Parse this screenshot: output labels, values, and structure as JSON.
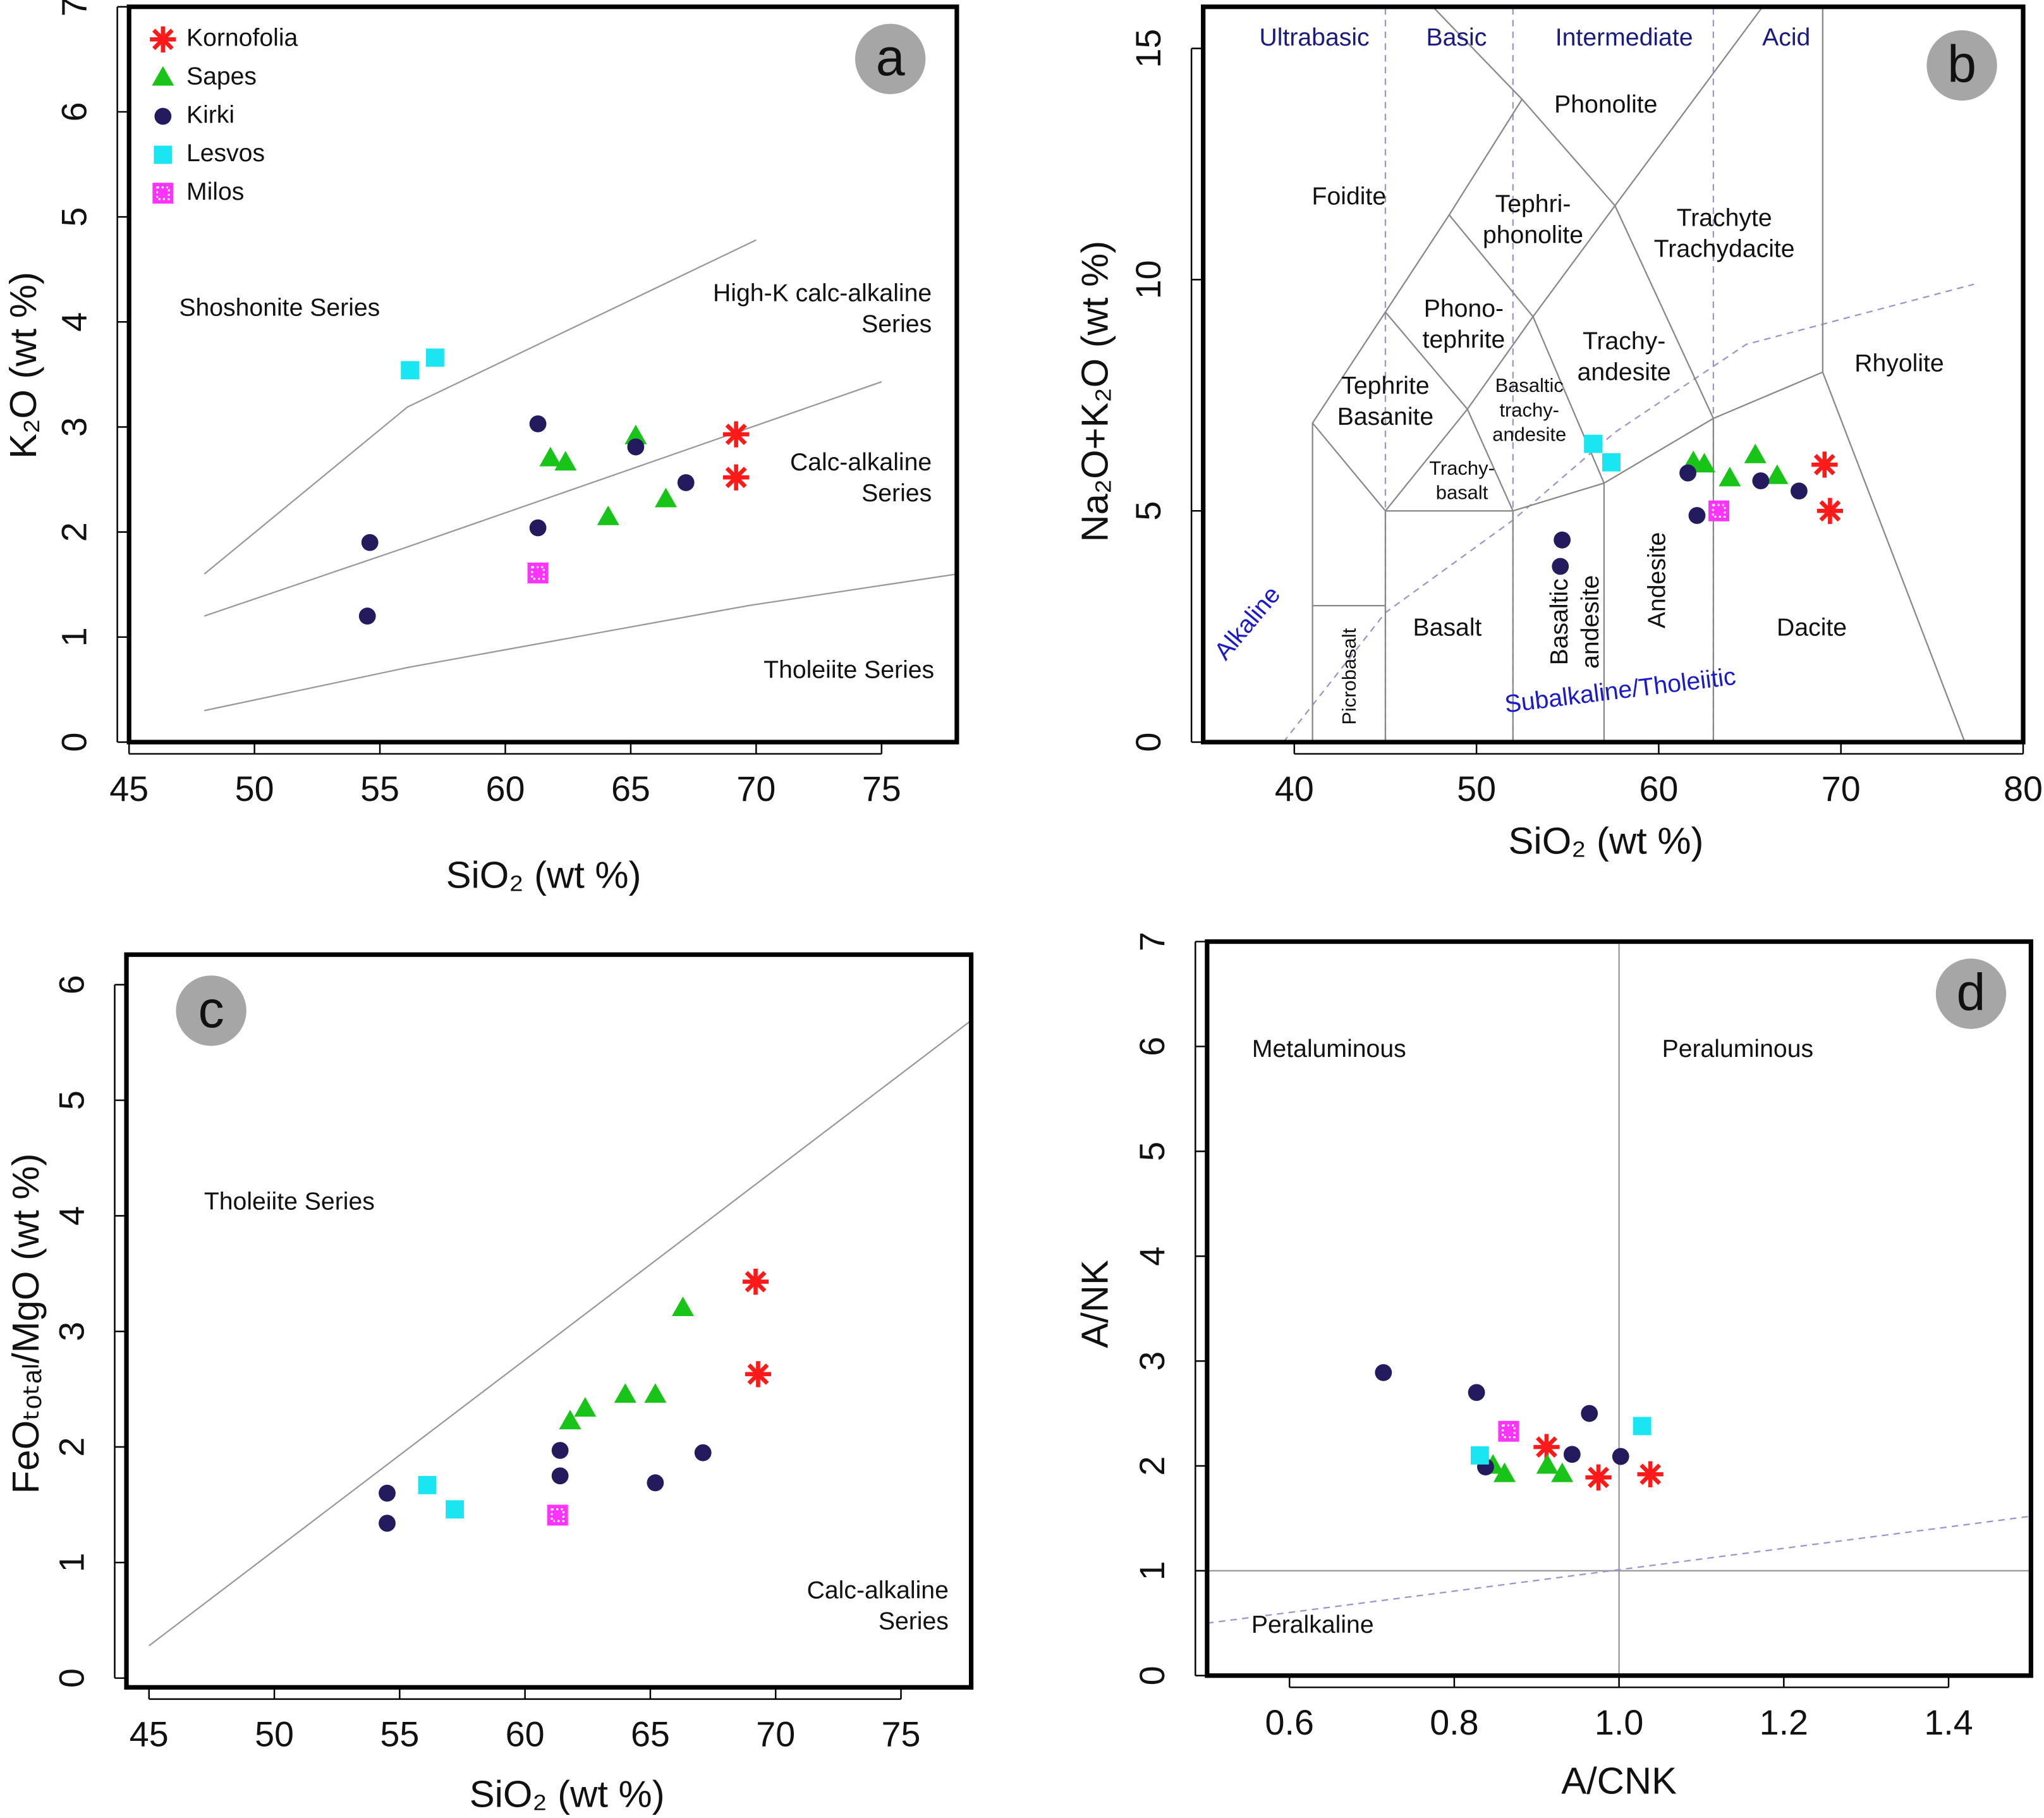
{
  "chart_data": [
    {
      "type": "scatter",
      "panel_label": "a",
      "xlabel": "SiO₂ (wt %)",
      "ylabel": "K₂O (wt %)",
      "xlim": [
        45,
        78
      ],
      "ylim": [
        0,
        7
      ],
      "xticks": [
        45,
        50,
        55,
        60,
        65,
        70,
        75
      ],
      "yticks": [
        0,
        1,
        2,
        3,
        4,
        5,
        6,
        7
      ],
      "legend": "upper left",
      "series": [
        {
          "name": "Kornofolia",
          "marker": "star",
          "color": "#ff1a1a",
          "x": [
            69.2,
            69.2
          ],
          "values": [
            2.93,
            2.52
          ]
        },
        {
          "name": "Sapes",
          "marker": "triangle",
          "color": "#18c418",
          "x": [
            65.2,
            61.8,
            62.4,
            64.1,
            66.4
          ],
          "values": [
            2.91,
            2.7,
            2.66,
            2.14,
            2.31
          ]
        },
        {
          "name": "Kirki",
          "marker": "circle",
          "color": "#231b5e",
          "x": [
            54.6,
            54.5,
            61.3,
            61.3,
            65.2,
            67.2
          ],
          "values": [
            1.9,
            1.2,
            3.03,
            2.04,
            2.81,
            2.47
          ]
        },
        {
          "name": "Lesvos",
          "marker": "square",
          "color": "#19e6f0",
          "x": [
            56.2,
            57.2
          ],
          "values": [
            3.54,
            3.66
          ]
        },
        {
          "name": "Milos",
          "marker": "dotted-square",
          "color": "#ff33ff",
          "x": [
            61.3
          ],
          "values": [
            1.61
          ]
        }
      ],
      "reference_lines": [
        {
          "points": [
            [
              48,
              1.6
            ],
            [
              56.1,
              3.19
            ],
            [
              70,
              4.78
            ]
          ],
          "style": "solid",
          "color": "#999999"
        },
        {
          "points": [
            [
              48,
              1.2
            ],
            [
              56,
              1.85
            ],
            [
              75,
              3.43
            ]
          ],
          "style": "solid",
          "color": "#999999"
        },
        {
          "points": [
            [
              48,
              0.3
            ],
            [
              56.1,
              0.71
            ],
            [
              69.7,
              1.3
            ],
            [
              78,
              1.6
            ]
          ],
          "style": "solid",
          "color": "#999999"
        }
      ],
      "annotations": [
        {
          "text": [
            "Shoshonite Series"
          ],
          "x": 51,
          "y": 4.12
        },
        {
          "text": [
            "High-K calc-alkaline",
            "Series"
          ],
          "x": 77,
          "y": 4.11,
          "anchor": "end"
        },
        {
          "text": [
            "Calc-alkaline",
            "Series"
          ],
          "x": 77,
          "y": 2.5,
          "anchor": "end"
        },
        {
          "text": [
            "Tholeiite Series"
          ],
          "x": 77.1,
          "y": 0.67,
          "anchor": "end"
        }
      ]
    },
    {
      "type": "scatter",
      "panel_label": "b",
      "xlabel": "SiO₂ (wt %)",
      "ylabel": "Na₂O+K₂O (wt %)",
      "xlim": [
        35,
        80
      ],
      "ylim": [
        0,
        15.9
      ],
      "xticks": [
        40,
        50,
        60,
        70,
        80
      ],
      "yticks": [
        0,
        5,
        10,
        15
      ],
      "series": [
        {
          "marker": "star",
          "color": "#ff1a1a",
          "x": [
            69.1,
            69.4
          ],
          "values": [
            6.0,
            5.0
          ]
        },
        {
          "marker": "triangle",
          "color": "#18c418",
          "x": [
            61.9,
            62.5,
            63.9,
            65.3,
            66.5
          ],
          "values": [
            6.05,
            6.0,
            5.7,
            6.2,
            5.75
          ]
        },
        {
          "marker": "circle",
          "color": "#231b5e",
          "x": [
            61.6,
            62.1,
            65.6,
            67.7,
            54.7,
            54.6
          ],
          "values": [
            5.82,
            4.9,
            5.65,
            5.43,
            4.37,
            3.8
          ]
        },
        {
          "marker": "square",
          "color": "#19e6f0",
          "x": [
            56.4,
            57.4
          ],
          "values": [
            6.45,
            6.05
          ]
        },
        {
          "marker": "dotted-square",
          "color": "#ff33ff",
          "x": [
            63.3
          ],
          "values": [
            5.0
          ]
        }
      ],
      "reference_lines": [
        {
          "points": [
            [
              45,
              0
            ],
            [
              45,
              15.9
            ]
          ],
          "style": "dashed",
          "color": "#9a94d0"
        },
        {
          "points": [
            [
              52,
              0
            ],
            [
              52,
              15.9
            ]
          ],
          "style": "dashed",
          "color": "#9a94d0"
        },
        {
          "points": [
            [
              63,
              0
            ],
            [
              63,
              15.9
            ]
          ],
          "style": "dashed",
          "color": "#9a94d0"
        },
        {
          "points": [
            [
              39.4,
              0
            ],
            [
              45,
              2.8
            ],
            [
              52,
              4.8
            ],
            [
              57.6,
              6.7
            ],
            [
              64.8,
              8.6
            ],
            [
              77.3,
              9.9
            ]
          ],
          "style": "dashed",
          "color": "#9a94d0"
        },
        {
          "points": [
            [
              41,
              0
            ],
            [
              41,
              6.9
            ],
            [
              45,
              9.3
            ],
            [
              48.5,
              11.4
            ],
            [
              52.5,
              13.9
            ],
            [
              57.6,
              11.6
            ],
            [
              63,
              7
            ],
            [
              69,
              8
            ],
            [
              76.8,
              0
            ]
          ],
          "style": "solid",
          "color": "#888888"
        },
        {
          "points": [
            [
              41,
              2.95
            ],
            [
              45,
              2.95
            ]
          ],
          "style": "solid",
          "color": "#888888"
        },
        {
          "points": [
            [
              45,
              0
            ],
            [
              45,
              5
            ],
            [
              52,
              5
            ],
            [
              52,
              0
            ]
          ],
          "style": "solid",
          "color": "#888888"
        },
        {
          "points": [
            [
              52,
              5
            ],
            [
              57,
              5.6
            ],
            [
              57,
              0
            ]
          ],
          "style": "solid",
          "color": "#888888"
        },
        {
          "points": [
            [
              57,
              5.6
            ],
            [
              63,
              7
            ],
            [
              63,
              0
            ]
          ],
          "style": "solid",
          "color": "#888888"
        },
        {
          "points": [
            [
              45,
              5
            ],
            [
              49.5,
              7.2
            ],
            [
              52,
              5
            ]
          ],
          "style": "solid",
          "color": "#888888"
        },
        {
          "points": [
            [
              41,
              6.9
            ],
            [
              45,
              5
            ]
          ],
          "style": "solid",
          "color": "#888888"
        },
        {
          "points": [
            [
              45,
              9.3
            ],
            [
              49.5,
              7.2
            ],
            [
              53.1,
              9.2
            ],
            [
              57,
              5.6
            ]
          ],
          "style": "solid",
          "color": "#888888"
        },
        {
          "points": [
            [
              48.5,
              11.4
            ],
            [
              53.1,
              9.2
            ],
            [
              57.6,
              11.6
            ]
          ],
          "style": "solid",
          "color": "#888888"
        },
        {
          "points": [
            [
              52.5,
              13.9
            ],
            [
              47.6,
              15.9
            ]
          ],
          "style": "solid",
          "color": "#888888"
        },
        {
          "points": [
            [
              57.6,
              11.6
            ],
            [
              65.7,
              15.9
            ]
          ],
          "style": "solid",
          "color": "#888888"
        },
        {
          "points": [
            [
              69,
              8
            ],
            [
              69,
              15.9
            ]
          ],
          "style": "solid",
          "color": "#888888"
        }
      ],
      "annotations": [
        {
          "text": [
            "Ultrabasic"
          ],
          "x": 41.1,
          "y": 15.2,
          "color": "#1a1a80"
        },
        {
          "text": [
            "Basic"
          ],
          "x": 48.9,
          "y": 15.2,
          "color": "#1a1a80"
        },
        {
          "text": [
            "Intermediate"
          ],
          "x": 58.1,
          "y": 15.2,
          "color": "#1a1a80"
        },
        {
          "text": [
            "Acid"
          ],
          "x": 67,
          "y": 15.2,
          "color": "#1a1a80"
        },
        {
          "text": [
            "Phonolite"
          ],
          "x": 57.1,
          "y": 13.75
        },
        {
          "text": [
            "Foidite"
          ],
          "x": 43,
          "y": 11.76
        },
        {
          "text": [
            "Tephri-",
            "phonolite"
          ],
          "x": 53.1,
          "y": 11.26
        },
        {
          "text": [
            "Trachyte",
            "Trachydacite"
          ],
          "x": 63.6,
          "y": 10.96
        },
        {
          "text": [
            "Phono-",
            "tephrite"
          ],
          "x": 49.3,
          "y": 9.0
        },
        {
          "text": [
            "Trachy-",
            "andesite"
          ],
          "x": 58.1,
          "y": 8.3
        },
        {
          "text": [
            "Rhyolite"
          ],
          "x": 73.2,
          "y": 8.15
        },
        {
          "text": [
            "Tephrite",
            "Basanite"
          ],
          "x": 45,
          "y": 7.33
        },
        {
          "text": [
            "Basaltic",
            "trachy-",
            "andesite"
          ],
          "x": 52.9,
          "y": 7.15,
          "size": "small"
        },
        {
          "text": [
            "Trachy-",
            "basalt"
          ],
          "x": 49.2,
          "y": 5.63,
          "size": "small"
        },
        {
          "text": [
            "Basalt"
          ],
          "x": 48.4,
          "y": 2.44
        },
        {
          "text": [
            "Dacite"
          ],
          "x": 68.4,
          "y": 2.44
        },
        {
          "text": [
            "Picrobasalt"
          ],
          "x": 43.1,
          "y": 1.42,
          "rotate": -90,
          "size": "small"
        },
        {
          "text": [
            "Basaltic",
            "andesite"
          ],
          "x": 55.5,
          "y": 2.6,
          "rotate": -90
        },
        {
          "text": [
            "Andesite"
          ],
          "x": 60,
          "y": 3.5,
          "rotate": -90
        },
        {
          "text": [
            "Alkaline"
          ],
          "x": 37.5,
          "y": 2.55,
          "rotate": -50,
          "color": "#1a1acc"
        },
        {
          "text": [
            "Subalkaline/Tholeiitic"
          ],
          "x": 57.9,
          "y": 1.08,
          "rotate": -7,
          "color": "#1a1acc"
        }
      ]
    },
    {
      "type": "scatter",
      "panel_label": "c",
      "xlabel": "SiO₂ (wt %)",
      "ylabel": "FeOₜₒₜₐₗ/MgO (wt %)",
      "xlim": [
        44.1,
        77.8
      ],
      "ylim": [
        -0.08,
        6.26
      ],
      "xticks": [
        45,
        50,
        55,
        60,
        65,
        70,
        75
      ],
      "yticks": [
        0,
        1,
        2,
        3,
        4,
        5,
        6
      ],
      "series": [
        {
          "marker": "star",
          "color": "#ff1a1a",
          "x": [
            69.2,
            69.3
          ],
          "values": [
            3.43,
            2.63
          ]
        },
        {
          "marker": "triangle",
          "color": "#18c418",
          "x": [
            66.3,
            62.4,
            61.8,
            64,
            65.2
          ],
          "values": [
            3.2,
            2.33,
            2.22,
            2.45,
            2.45
          ]
        },
        {
          "marker": "circle",
          "color": "#231b5e",
          "x": [
            54.5,
            54.5,
            61.4,
            61.4,
            65.2,
            67.1
          ],
          "values": [
            1.6,
            1.34,
            1.97,
            1.75,
            1.69,
            1.95
          ]
        },
        {
          "marker": "square",
          "color": "#19e6f0",
          "x": [
            56.1,
            57.2
          ],
          "values": [
            1.67,
            1.46
          ]
        },
        {
          "marker": "dotted-square",
          "color": "#ff33ff",
          "x": [
            61.3
          ],
          "values": [
            1.41
          ]
        }
      ],
      "reference_lines": [
        {
          "points": [
            [
              45,
              0.28
            ],
            [
              77.8,
              5.69
            ]
          ],
          "style": "solid",
          "color": "#999999"
        }
      ],
      "annotations": [
        {
          "text": [
            "Tholeiite Series"
          ],
          "x": 50.6,
          "y": 4.11
        },
        {
          "text": [
            "Calc-alkaline",
            "Series"
          ],
          "x": 76.9,
          "y": 0.61,
          "anchor": "end"
        }
      ]
    },
    {
      "type": "scatter",
      "panel_label": "d",
      "xlabel": "A/CNK",
      "ylabel": "A/NK",
      "xlim": [
        0.5,
        1.5
      ],
      "ylim": [
        0,
        7
      ],
      "xticks": [
        0.6,
        0.8,
        {
          "value": 1.0,
          "label": "1.0"
        },
        1.2,
        1.4
      ],
      "yticks": [
        0,
        1,
        2,
        3,
        4,
        5,
        6,
        7
      ],
      "series": [
        {
          "marker": "star",
          "color": "#ff1a1a",
          "x": [
            0.912,
            0.975,
            1.038
          ],
          "values": [
            2.18,
            1.89,
            1.92
          ]
        },
        {
          "marker": "triangle",
          "color": "#18c418",
          "x": [
            0.847,
            0.861,
            0.913,
            0.931
          ],
          "values": [
            2.0,
            1.92,
            2.0,
            1.92
          ]
        },
        {
          "marker": "circle",
          "color": "#231b5e",
          "x": [
            0.714,
            0.827,
            0.838,
            0.964,
            0.943,
            1.002
          ],
          "values": [
            2.89,
            2.7,
            1.99,
            2.5,
            2.11,
            2.09
          ]
        },
        {
          "marker": "square",
          "color": "#19e6f0",
          "x": [
            0.831,
            1.028
          ],
          "values": [
            2.1,
            2.38
          ]
        },
        {
          "marker": "dotted-square",
          "color": "#ff33ff",
          "x": [
            0.866
          ],
          "values": [
            2.33
          ]
        }
      ],
      "reference_lines": [
        {
          "points": [
            [
              1,
              0
            ],
            [
              1,
              7
            ]
          ],
          "style": "solid",
          "color": "#999999"
        },
        {
          "points": [
            [
              0.5,
              1
            ],
            [
              1.5,
              1
            ]
          ],
          "style": "solid",
          "color": "#999999"
        },
        {
          "points": [
            [
              0.5,
              0.5
            ],
            [
              1.5,
              1.52
            ]
          ],
          "style": "dashed",
          "color": "#9a94d0"
        }
      ],
      "annotations": [
        {
          "text": [
            "Metaluminous"
          ],
          "x": 0.648,
          "y": 5.96
        },
        {
          "text": [
            "Peraluminous"
          ],
          "x": 1.144,
          "y": 5.96
        },
        {
          "text": [
            "Peralkaline"
          ],
          "x": 0.628,
          "y": 0.47
        }
      ]
    }
  ]
}
